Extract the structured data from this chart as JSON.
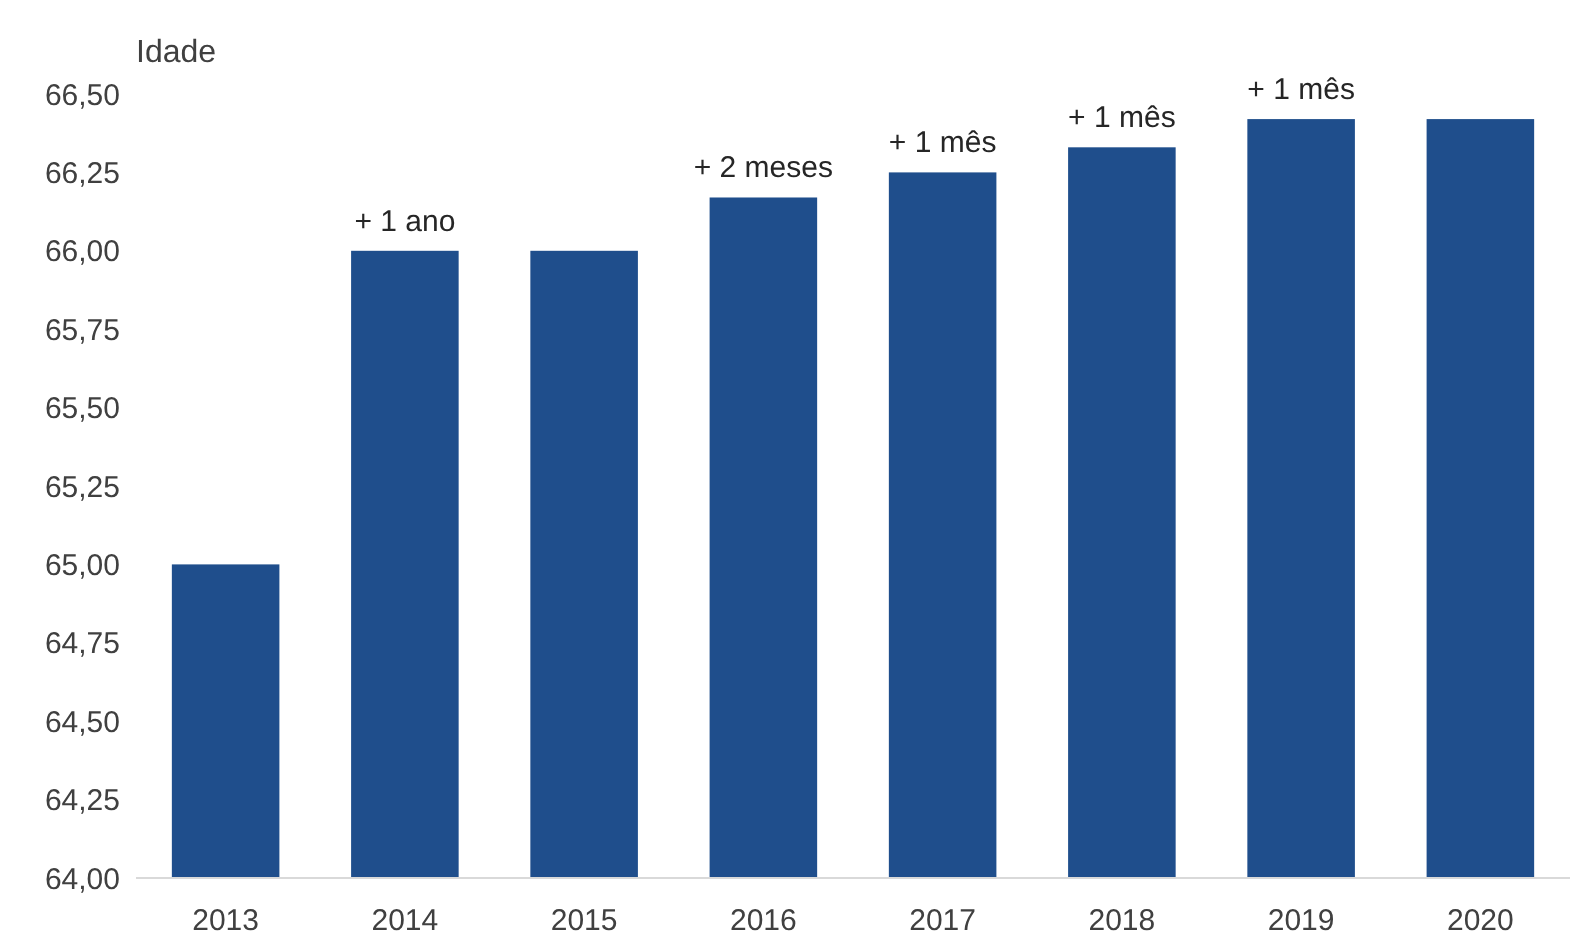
{
  "chart_data": {
    "type": "bar",
    "ylabel": "Idade",
    "categories": [
      "2013",
      "2014",
      "2015",
      "2016",
      "2017",
      "2018",
      "2019",
      "2020"
    ],
    "values": [
      65,
      66,
      66,
      66.17,
      66.25,
      66.33,
      66.42,
      66.42
    ],
    "color": "#1f4e8c",
    "ylim": [
      64,
      66.5
    ],
    "yticks": [
      {
        "value": 64,
        "label": "64,00"
      },
      {
        "value": 64.25,
        "label": "64,25"
      },
      {
        "value": 64.5,
        "label": "64,50"
      },
      {
        "value": 64.75,
        "label": "64,75"
      },
      {
        "value": 65,
        "label": "65,00"
      },
      {
        "value": 65.25,
        "label": "65,25"
      },
      {
        "value": 65.5,
        "label": "65,50"
      },
      {
        "value": 65.75,
        "label": "65,75"
      },
      {
        "value": 66,
        "label": "66,00"
      },
      {
        "value": 66.25,
        "label": "66,25"
      },
      {
        "value": 66.5,
        "label": "66,50"
      }
    ],
    "grid": false,
    "annotations": [
      {
        "text": "+ 1 ano",
        "x": "2014",
        "y": 66
      },
      {
        "text": "+ 2 meses",
        "x": "2016",
        "y": 66.17
      },
      {
        "text": "+ 1 mês",
        "x": "2017",
        "y": 66.25
      },
      {
        "text": "+ 1 mês",
        "x": "2018",
        "y": 66.33
      },
      {
        "text": "+ 1 mês",
        "x": "2019",
        "y": 66.42
      }
    ]
  }
}
